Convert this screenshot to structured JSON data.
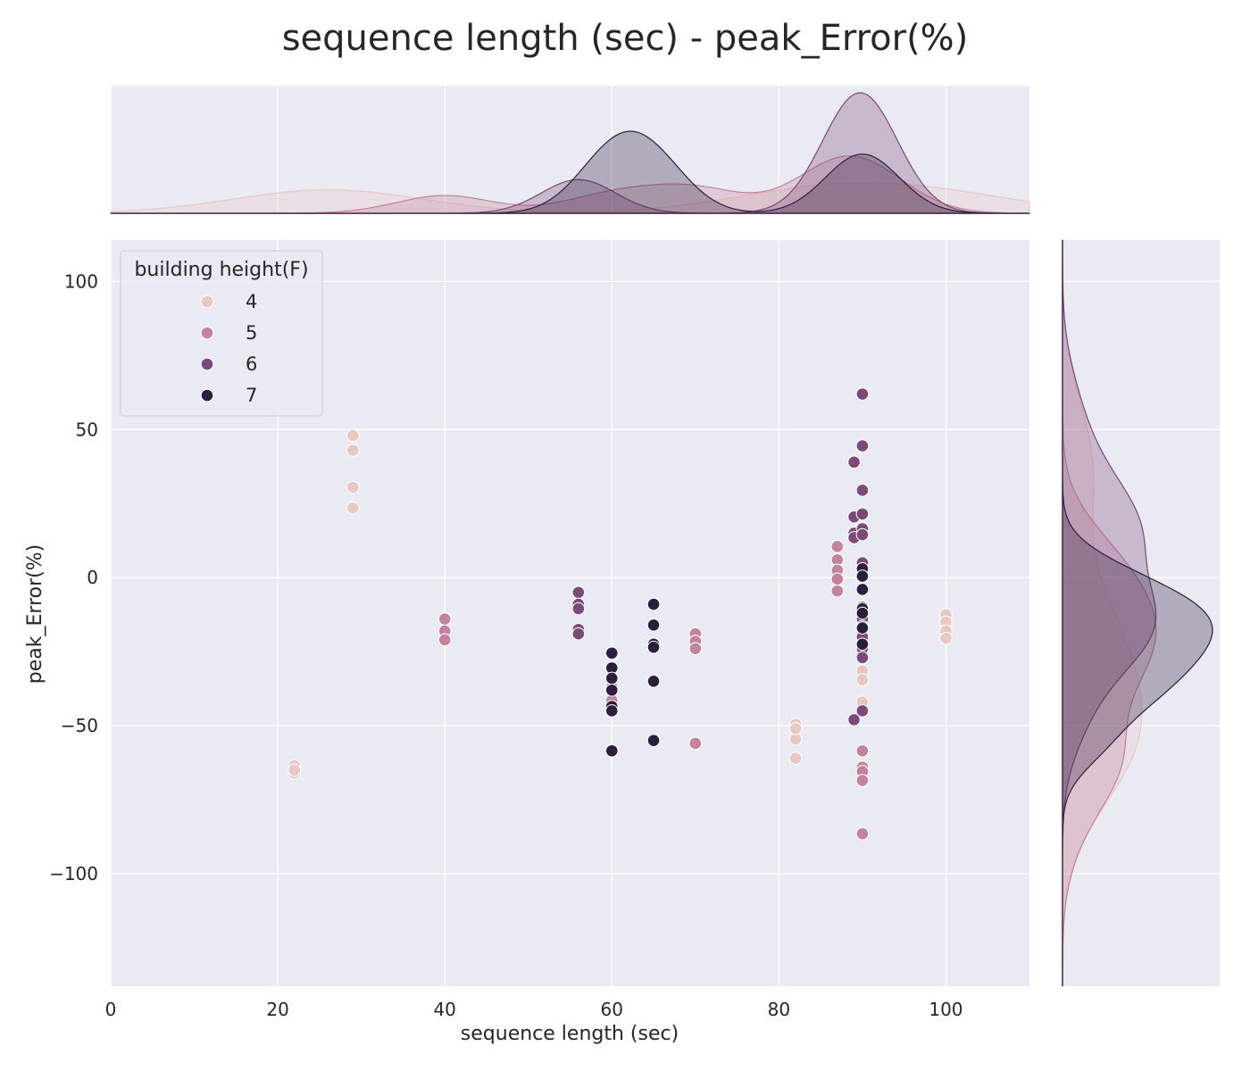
{
  "chart_data": {
    "type": "scatter",
    "title": "sequence length (sec) - peak_Error(%)",
    "xlabel": "sequence length (sec)",
    "ylabel": "peak_Error(%)",
    "xlim": [
      0,
      110
    ],
    "ylim": [
      -138,
      114
    ],
    "x_ticks": [
      0,
      20,
      40,
      60,
      80,
      100
    ],
    "y_ticks": [
      100,
      50,
      0,
      -50,
      -100
    ],
    "grid": true,
    "legend": {
      "title": "building height(F)",
      "position": "top-left"
    },
    "marginals": {
      "top": "kde",
      "right": "kde"
    },
    "series": [
      {
        "name": "4",
        "color": "#e8c8c2",
        "points": [
          [
            22,
            -63.5
          ],
          [
            22,
            -66
          ],
          [
            22,
            -65
          ],
          [
            29,
            48
          ],
          [
            29,
            43
          ],
          [
            29,
            30.5
          ],
          [
            29,
            23.5
          ],
          [
            82,
            -49.5
          ],
          [
            82,
            -54.5
          ],
          [
            82,
            -61
          ],
          [
            82,
            -51
          ],
          [
            90,
            -31.5
          ],
          [
            90,
            -34.5
          ],
          [
            90,
            -42
          ],
          [
            100,
            -12.5
          ],
          [
            100,
            -15
          ],
          [
            100,
            -18
          ],
          [
            100,
            -20.5
          ]
        ]
      },
      {
        "name": "5",
        "color": "#c2849a",
        "points": [
          [
            40,
            -14
          ],
          [
            40,
            -18
          ],
          [
            40,
            -21
          ],
          [
            60,
            -33.5
          ],
          [
            60,
            -37
          ],
          [
            60,
            -41.5
          ],
          [
            70,
            -19
          ],
          [
            70,
            -21.5
          ],
          [
            70,
            -24
          ],
          [
            70,
            -56
          ],
          [
            87,
            10.5
          ],
          [
            87,
            6
          ],
          [
            87,
            2.5
          ],
          [
            87,
            -0.5
          ],
          [
            87,
            -4.5
          ],
          [
            90,
            -58.5
          ],
          [
            90,
            -64
          ],
          [
            90,
            -65.5
          ],
          [
            90,
            -68.5
          ],
          [
            90,
            -86.5
          ]
        ]
      },
      {
        "name": "6",
        "color": "#7b4a78",
        "points": [
          [
            56,
            -5
          ],
          [
            56,
            -9
          ],
          [
            56,
            -10.5
          ],
          [
            56,
            -17.5
          ],
          [
            56,
            -19
          ],
          [
            89,
            39
          ],
          [
            89,
            20.5
          ],
          [
            89,
            15
          ],
          [
            89,
            13.5
          ],
          [
            89,
            -48
          ],
          [
            90,
            62
          ],
          [
            90,
            44.5
          ],
          [
            90,
            29.5
          ],
          [
            90,
            21.5
          ],
          [
            90,
            16.5
          ],
          [
            90,
            14.5
          ],
          [
            90,
            5
          ],
          [
            90,
            -14
          ],
          [
            90,
            -16.5
          ],
          [
            90,
            -20
          ],
          [
            90,
            -24
          ],
          [
            90,
            -27
          ],
          [
            90,
            -45
          ]
        ]
      },
      {
        "name": "7",
        "color": "#2c1e3d",
        "points": [
          [
            60,
            -25.5
          ],
          [
            60,
            -30.5
          ],
          [
            60,
            -34
          ],
          [
            60,
            -38
          ],
          [
            60,
            -43.5
          ],
          [
            60,
            -45
          ],
          [
            60,
            -58.5
          ],
          [
            65,
            -9
          ],
          [
            65,
            -16
          ],
          [
            65,
            -22.5
          ],
          [
            65,
            -23.5
          ],
          [
            65,
            -35
          ],
          [
            65,
            -55
          ],
          [
            90,
            3
          ],
          [
            90,
            0.5
          ],
          [
            90,
            -4
          ],
          [
            90,
            -10
          ],
          [
            90,
            -10.5
          ],
          [
            90,
            -12
          ],
          [
            90,
            -17
          ],
          [
            90,
            -22.5
          ]
        ]
      }
    ]
  }
}
